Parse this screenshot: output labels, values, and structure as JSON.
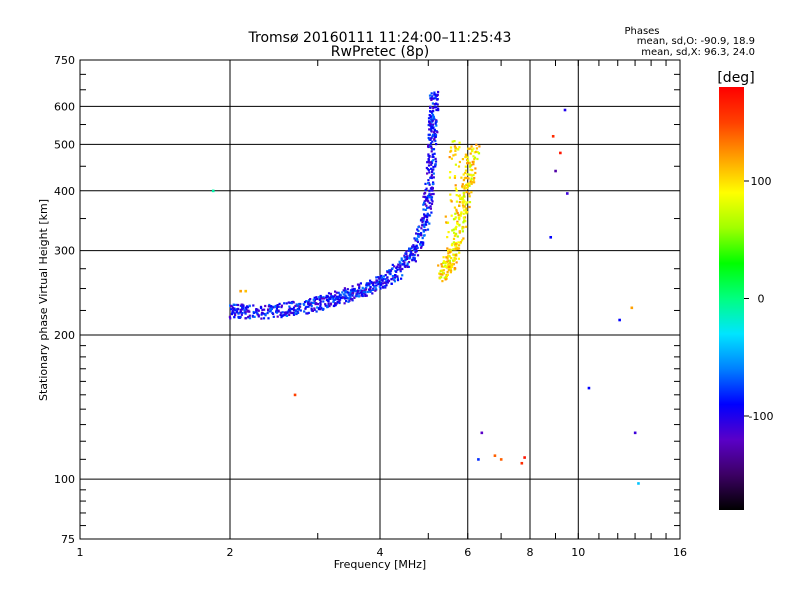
{
  "chart_data": {
    "type": "scatter",
    "title": "Tromsø 20160111 11:24:00–11:25:43",
    "subtitle": "RwPretec (8p)",
    "xlabel": "Frequency [MHz]",
    "ylabel": "Stationary phase Virtual Height [km]",
    "x_scale": "log",
    "y_scale": "log",
    "xlim": [
      1,
      16
    ],
    "ylim": [
      75,
      750
    ],
    "x_ticks": [
      1,
      2,
      4,
      6,
      8,
      10,
      16
    ],
    "x_tick_labels": [
      "1",
      "2",
      "4",
      "6",
      "8",
      "10",
      "16"
    ],
    "y_ticks": [
      75,
      100,
      200,
      300,
      400,
      500,
      600,
      750
    ],
    "y_tick_labels": [
      "75",
      "100",
      "200",
      "300",
      "400",
      "500",
      "600",
      "750"
    ],
    "grid": true,
    "stats": {
      "heading": "Phases",
      "line_o": "mean, sd,O: -90.9, 18.9",
      "line_x": "mean, sd,X:  96.3, 24.0"
    },
    "colorbar": {
      "label": "[deg]",
      "range": [
        -180,
        180
      ],
      "ticks": [
        -100,
        0,
        100
      ],
      "tick_labels": [
        "-100",
        "0",
        "100"
      ],
      "palette": [
        "#000000",
        "#3c0064",
        "#5a00c8",
        "#0000ff",
        "#0080ff",
        "#00e5ff",
        "#00ff80",
        "#00ff00",
        "#a0ff00",
        "#ffff00",
        "#ffa000",
        "#ff4000",
        "#ff0000"
      ]
    },
    "o_trace": {
      "name": "O-mode",
      "phase_mean": -90.9,
      "points": [
        [
          2.0,
          225
        ],
        [
          2.1,
          225
        ],
        [
          2.3,
          224
        ],
        [
          2.5,
          226
        ],
        [
          2.7,
          228
        ],
        [
          2.9,
          232
        ],
        [
          3.1,
          236
        ],
        [
          3.3,
          240
        ],
        [
          3.5,
          245
        ],
        [
          3.7,
          250
        ],
        [
          3.9,
          256
        ],
        [
          4.1,
          263
        ],
        [
          4.3,
          272
        ],
        [
          4.5,
          285
        ],
        [
          4.7,
          305
        ],
        [
          4.85,
          335
        ],
        [
          4.95,
          370
        ],
        [
          5.0,
          410
        ],
        [
          5.05,
          460
        ],
        [
          5.08,
          520
        ],
        [
          5.1,
          580
        ],
        [
          5.12,
          640
        ]
      ]
    },
    "x_trace": {
      "name": "X-mode",
      "phase_mean": 96.3,
      "points": [
        [
          5.3,
          268
        ],
        [
          5.4,
          275
        ],
        [
          5.5,
          285
        ],
        [
          5.6,
          300
        ],
        [
          5.7,
          325
        ],
        [
          5.8,
          355
        ],
        [
          5.9,
          390
        ],
        [
          6.0,
          420
        ],
        [
          6.05,
          460
        ],
        [
          6.15,
          490
        ],
        [
          5.5,
          330
        ],
        [
          5.65,
          520
        ]
      ]
    },
    "scattered_points": [
      [
        1.85,
        400,
        -10
      ],
      [
        2.1,
        247,
        120
      ],
      [
        2.15,
        247,
        110
      ],
      [
        2.7,
        150,
        150
      ],
      [
        6.3,
        110,
        -80
      ],
      [
        6.4,
        125,
        -120
      ],
      [
        6.8,
        112,
        140
      ],
      [
        7.0,
        110,
        140
      ],
      [
        7.7,
        108,
        160
      ],
      [
        7.8,
        111,
        170
      ],
      [
        8.9,
        520,
        160
      ],
      [
        9.0,
        440,
        -130
      ],
      [
        8.8,
        320,
        -90
      ],
      [
        9.4,
        590,
        -100
      ],
      [
        9.5,
        395,
        -110
      ],
      [
        9.2,
        480,
        170
      ],
      [
        10.5,
        155,
        -90
      ],
      [
        12.1,
        215,
        -90
      ],
      [
        12.8,
        228,
        120
      ],
      [
        13.0,
        125,
        -110
      ],
      [
        13.2,
        98,
        -40
      ]
    ]
  }
}
